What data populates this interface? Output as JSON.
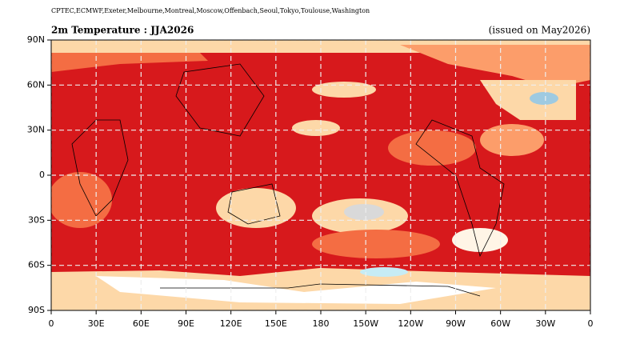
{
  "header": {
    "centers": "CPTEC,ECMWF,Exeter,Melbourne,Montreal,Moscow,Offenbach,Seoul,Tokyo,Toulouse,Washington",
    "title": "2m Temperature : JJA2026",
    "issued": "(issued on May2026)"
  },
  "map": {
    "xlim": [
      0,
      360
    ],
    "ylim": [
      -90,
      90
    ],
    "grid": true,
    "xticks": [
      0,
      {
        "value": 30,
        "label": "30E"
      },
      {
        "value": 60,
        "label": "60E"
      },
      {
        "value": 90,
        "label": "90E"
      },
      {
        "value": 120,
        "label": "120E"
      },
      {
        "value": 150,
        "label": "150E"
      },
      180,
      {
        "value": 210,
        "label": "150W"
      },
      {
        "value": 240,
        "label": "120W"
      },
      {
        "value": 270,
        "label": "90W"
      },
      {
        "value": 300,
        "label": "60W"
      },
      {
        "value": 330,
        "label": "30W"
      },
      {
        "value": 360,
        "label": "0"
      }
    ],
    "yticks": [
      {
        "value": 90,
        "label": "90N"
      },
      {
        "value": 60,
        "label": "60N"
      },
      {
        "value": 30,
        "label": "30N"
      },
      0,
      {
        "value": -30,
        "label": "30S"
      },
      {
        "value": -60,
        "label": "60S"
      },
      {
        "value": -90,
        "label": "90S"
      }
    ]
  }
}
